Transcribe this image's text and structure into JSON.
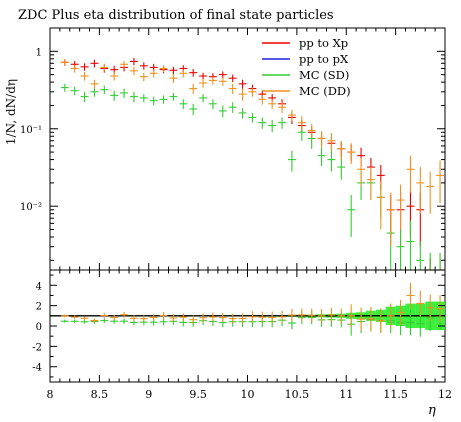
{
  "chart_data": {
    "type": "scatter",
    "title": "ZDC Plus eta distribution of final state particles",
    "xlabel": "η",
    "ylabel": "1/N, dN/dη",
    "ratio_ylabel": "",
    "xlim": [
      8,
      12
    ],
    "ylim": [
      0.0015,
      2
    ],
    "yscale": "log",
    "ratio_ylim": [
      -5.5,
      5.5
    ],
    "x_ticks": [
      "8",
      "8.5",
      "9",
      "9.5",
      "10",
      "10.5",
      "11",
      "11.5",
      "12"
    ],
    "y_ticks": [
      {
        "label": "1",
        "value": 1
      },
      {
        "label": "10⁻¹",
        "value": 0.1
      },
      {
        "label": "10⁻²",
        "value": 0.01
      }
    ],
    "ratio_ticks": [
      "4",
      "2",
      "0",
      "-2",
      "-4"
    ],
    "legend_position": "top-right",
    "bin_edges": [
      8.1,
      8.2,
      8.3,
      8.4,
      8.5,
      8.6,
      8.7,
      8.8,
      8.9,
      9.0,
      9.1,
      9.2,
      9.3,
      9.4,
      9.5,
      9.6,
      9.7,
      9.8,
      9.9,
      10.0,
      10.1,
      10.2,
      10.3,
      10.4,
      10.5,
      10.6,
      10.7,
      10.8,
      10.9,
      11.0,
      11.1,
      11.2,
      11.3,
      11.4,
      11.5,
      11.6,
      11.7,
      11.8,
      11.9,
      12.0
    ],
    "series": [
      {
        "name": "pp to Xp",
        "color": "#ee0000",
        "y": [
          0.72,
          0.68,
          0.63,
          0.7,
          0.6,
          0.58,
          0.62,
          0.74,
          0.65,
          0.62,
          0.58,
          0.57,
          0.6,
          0.53,
          0.48,
          0.47,
          0.5,
          0.45,
          0.38,
          0.33,
          0.28,
          0.25,
          0.21,
          0.14,
          0.11,
          0.09,
          0.075,
          0.065,
          0.055,
          0.05,
          0.045,
          0.032,
          0.025,
          0.009,
          0.009,
          0.01,
          0.009,
          0.0013,
          0.0013
        ],
        "err": [
          0.07,
          0.07,
          0.07,
          0.08,
          0.07,
          0.07,
          0.07,
          0.08,
          0.07,
          0.07,
          0.06,
          0.06,
          0.06,
          0.06,
          0.05,
          0.05,
          0.05,
          0.05,
          0.05,
          0.04,
          0.035,
          0.03,
          0.03,
          0.025,
          0.02,
          0.015,
          0.015,
          0.013,
          0.012,
          0.012,
          0.012,
          0.01,
          0.009,
          0.005,
          0.006,
          0.006,
          0.006,
          0.0008,
          0.0008
        ]
      },
      {
        "name": "pp to pX",
        "color": "#2222dd",
        "y": [],
        "err": []
      },
      {
        "name": "MC (SD)",
        "color": "#33cc33",
        "y": [
          0.34,
          0.31,
          0.26,
          0.3,
          0.32,
          0.27,
          0.29,
          0.26,
          0.25,
          0.23,
          0.24,
          0.26,
          0.21,
          0.18,
          0.25,
          0.21,
          0.17,
          0.19,
          0.16,
          0.14,
          0.12,
          0.11,
          0.12,
          0.04,
          0.09,
          0.075,
          0.045,
          0.04,
          0.032,
          0.009,
          0.02,
          0.02,
          0.013,
          0.0045,
          0.003,
          0.0035,
          0.002,
          0.0015,
          0.0015
        ],
        "err": [
          0.04,
          0.04,
          0.04,
          0.04,
          0.04,
          0.04,
          0.04,
          0.04,
          0.03,
          0.03,
          0.03,
          0.03,
          0.03,
          0.03,
          0.03,
          0.03,
          0.03,
          0.03,
          0.025,
          0.02,
          0.02,
          0.02,
          0.02,
          0.012,
          0.02,
          0.02,
          0.012,
          0.012,
          0.01,
          0.005,
          0.008,
          0.008,
          0.006,
          0.003,
          0.002,
          0.003,
          0.0015,
          0.001,
          0.001
        ]
      },
      {
        "name": "MC (DD)",
        "color": "#f09020",
        "y": [
          0.72,
          0.6,
          0.48,
          0.38,
          0.62,
          0.48,
          0.68,
          0.56,
          0.47,
          0.52,
          0.6,
          0.45,
          0.52,
          0.33,
          0.39,
          0.42,
          0.41,
          0.33,
          0.28,
          0.3,
          0.24,
          0.21,
          0.19,
          0.15,
          0.12,
          0.095,
          0.075,
          0.07,
          0.055,
          0.05,
          0.03,
          0.022,
          0.013,
          0.009,
          0.012,
          0.03,
          0.02,
          0.018,
          0.025
        ],
        "err": [
          0.07,
          0.07,
          0.06,
          0.05,
          0.07,
          0.06,
          0.07,
          0.07,
          0.06,
          0.06,
          0.06,
          0.06,
          0.06,
          0.05,
          0.05,
          0.05,
          0.05,
          0.05,
          0.05,
          0.04,
          0.035,
          0.03,
          0.03,
          0.025,
          0.025,
          0.02,
          0.018,
          0.018,
          0.015,
          0.015,
          0.012,
          0.01,
          0.008,
          0.006,
          0.007,
          0.015,
          0.012,
          0.01,
          0.014
        ]
      }
    ],
    "ratio": [
      {
        "name": "MC (SD)",
        "color": "#33cc33",
        "y": [
          0.47,
          0.46,
          0.41,
          0.43,
          0.53,
          0.47,
          0.47,
          0.35,
          0.38,
          0.37,
          0.41,
          0.46,
          0.35,
          0.34,
          0.52,
          0.45,
          0.34,
          0.42,
          0.42,
          0.42,
          0.43,
          0.44,
          0.57,
          0.29,
          0.82,
          0.83,
          0.6,
          0.62,
          0.58,
          0.18,
          0.44,
          0.63,
          0.52,
          0.5,
          0.33,
          0.35,
          0.22,
          0.8,
          0.9
        ]
      },
      {
        "name": "MC (DD)",
        "color": "#f09020",
        "y": [
          1.0,
          0.88,
          0.76,
          0.54,
          1.03,
          0.83,
          1.1,
          0.76,
          0.72,
          0.84,
          1.03,
          0.79,
          0.87,
          0.62,
          0.81,
          0.89,
          0.82,
          0.73,
          0.74,
          0.91,
          0.86,
          0.84,
          0.9,
          1.07,
          1.09,
          1.06,
          1.0,
          1.08,
          1.0,
          1.0,
          0.67,
          0.69,
          0.52,
          1.0,
          1.33,
          3.0,
          2.2,
          1.8,
          1.7
        ]
      }
    ],
    "ratio_band": [
      0.04,
      0.04,
      0.04,
      0.04,
      0.05,
      0.05,
      0.05,
      0.05,
      0.05,
      0.05,
      0.05,
      0.05,
      0.05,
      0.05,
      0.05,
      0.05,
      0.05,
      0.06,
      0.06,
      0.06,
      0.07,
      0.07,
      0.08,
      0.1,
      0.1,
      0.12,
      0.15,
      0.18,
      0.2,
      0.3,
      0.35,
      0.5,
      0.6,
      0.9,
      1.0,
      1.2,
      1.2,
      1.4,
      1.4
    ]
  }
}
